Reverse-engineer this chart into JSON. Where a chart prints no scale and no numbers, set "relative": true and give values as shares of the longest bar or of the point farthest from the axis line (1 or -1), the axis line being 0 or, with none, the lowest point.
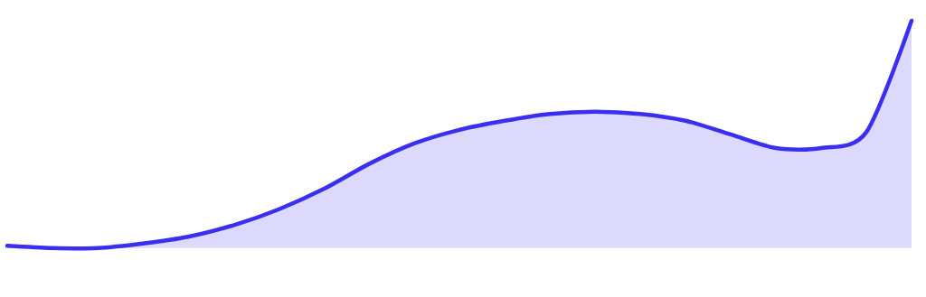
{
  "chart_data": {
    "type": "area",
    "relative": true,
    "color": "#3a2ef0",
    "categories": [
      null,
      null,
      null,
      null,
      null,
      null,
      null,
      null,
      null,
      null,
      null,
      null,
      null,
      null,
      null,
      null,
      null,
      null,
      null,
      null,
      null
    ],
    "values": [
      0.01,
      0.0,
      0.0,
      0.02,
      0.05,
      0.1,
      0.17,
      0.26,
      0.37,
      0.46,
      0.52,
      0.56,
      0.59,
      0.6,
      0.59,
      0.56,
      0.5,
      0.44,
      0.44,
      0.51,
      1.0
    ]
  }
}
